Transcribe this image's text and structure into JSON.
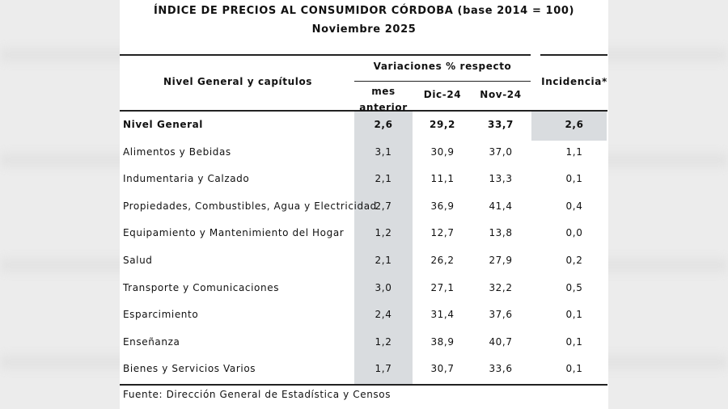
{
  "header": {
    "title": "ÍNDICE DE PRECIOS AL CONSUMIDOR CÓRDOBA (base 2014 = 100)",
    "subtitle": "Noviembre 2025"
  },
  "table": {
    "columns": {
      "name": "Nivel General y capítulos",
      "group": "Variaciones % respecto",
      "mes": "mes anterior",
      "dic": "Dic-24",
      "nov": "Nov-24",
      "incidencia": "Incidencia*"
    },
    "rows": [
      [
        "Nivel General",
        "2,6",
        "29,2",
        "33,7",
        "2,6"
      ],
      [
        "Alimentos y Bebidas",
        "3,1",
        "30,9",
        "37,0",
        "1,1"
      ],
      [
        "Indumentaria y Calzado",
        "2,1",
        "11,1",
        "13,3",
        "0,1"
      ],
      [
        "Propiedades, Combustibles, Agua y Electricidad",
        "2,7",
        "36,9",
        "41,4",
        "0,4"
      ],
      [
        "Equipamiento y Mantenimiento del Hogar",
        "1,2",
        "12,7",
        "13,8",
        "0,0"
      ],
      [
        "Salud",
        "2,1",
        "26,2",
        "27,9",
        "0,2"
      ],
      [
        "Transporte y Comunicaciones",
        "3,0",
        "27,1",
        "32,2",
        "0,5"
      ],
      [
        "Esparcimiento",
        "2,4",
        "31,4",
        "37,6",
        "0,1"
      ],
      [
        "Enseñanza",
        "1,2",
        "38,9",
        "40,7",
        "0,1"
      ],
      [
        "Bienes y Servicios Varios",
        "1,7",
        "30,7",
        "33,6",
        "0,1"
      ]
    ]
  },
  "footer": "Fuente: Dirección General de Estadística y Censos"
}
